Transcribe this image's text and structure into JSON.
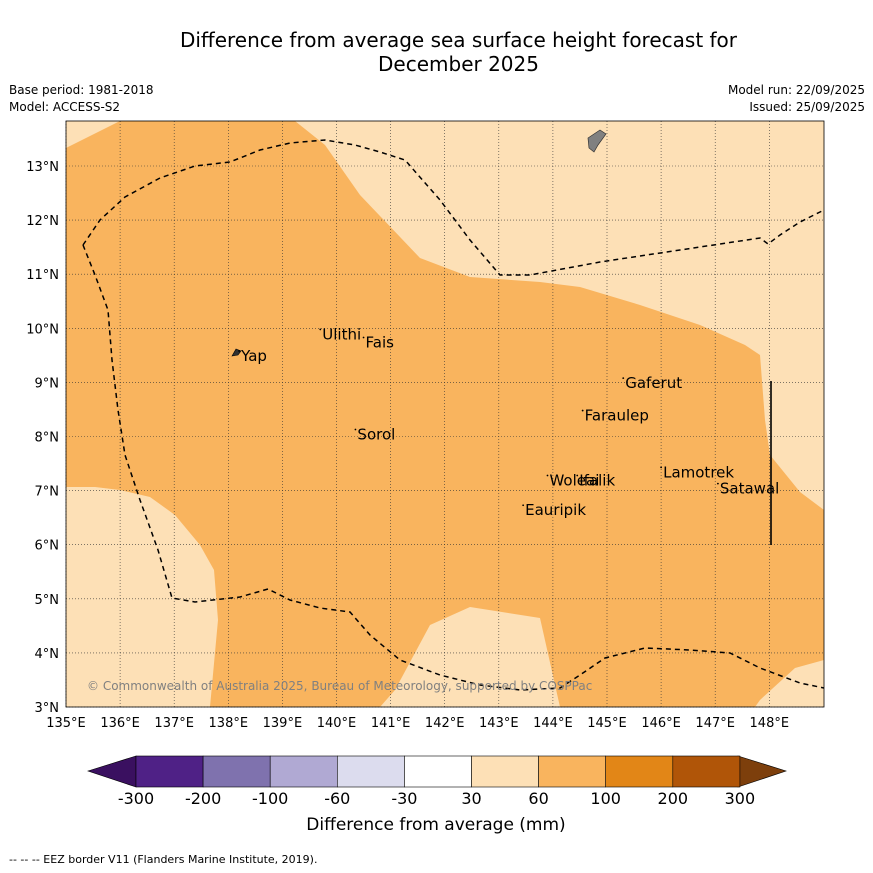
{
  "title_line1": "Difference from average sea surface height forecast for",
  "title_line2": "December 2025",
  "meta": {
    "base_period": "Base period: 1981-2018",
    "model": "Model: ACCESS-S2",
    "model_run": "Model run: 22/09/2025",
    "issued": "Issued: 25/09/2025"
  },
  "axes": {
    "x_ticks": [
      "135°E",
      "136°E",
      "137°E",
      "138°E",
      "139°E",
      "140°E",
      "141°E",
      "142°E",
      "143°E",
      "144°E",
      "145°E",
      "146°E",
      "147°E",
      "148°E"
    ],
    "y_ticks": [
      "3°N",
      "4°N",
      "5°N",
      "6°N",
      "7°N",
      "8°N",
      "9°N",
      "10°N",
      "11°N",
      "12°N",
      "13°N"
    ]
  },
  "places": [
    {
      "name": "Yap",
      "lon": 138.2,
      "lat": 9.45
    },
    {
      "name": "Ulithi",
      "lon": 139.7,
      "lat": 9.85
    },
    {
      "name": "Fais",
      "lon": 140.5,
      "lat": 9.7
    },
    {
      "name": "Sorol",
      "lon": 140.35,
      "lat": 8.0
    },
    {
      "name": "Gaferut",
      "lon": 145.3,
      "lat": 8.95
    },
    {
      "name": "Faraulep",
      "lon": 144.55,
      "lat": 8.35
    },
    {
      "name": "Woleai",
      "lon": 143.9,
      "lat": 7.15
    },
    {
      "name": "Ifalik",
      "lon": 144.45,
      "lat": 7.15
    },
    {
      "name": "Lamotrek",
      "lon": 146.0,
      "lat": 7.3
    },
    {
      "name": "Satawal",
      "lon": 147.05,
      "lat": 7.0
    },
    {
      "name": "Eauripik",
      "lon": 143.45,
      "lat": 6.6
    }
  ],
  "copyright": "© Commonwealth of Australia 2025, Bureau of Meteorology, supported by COSPPac",
  "legend": {
    "ticks": [
      "-300",
      "-200",
      "-100",
      "-60",
      "-30",
      "30",
      "60",
      "100",
      "200",
      "300"
    ],
    "label": "Difference from average (mm)",
    "colors": [
      "#3a1060",
      "#4f2186",
      "#7f72ae",
      "#b0a9d3",
      "#dcdcee",
      "#ffffff",
      "#fde0b6",
      "#f9b45e",
      "#e28617",
      "#b05508",
      "#7d3f0c"
    ]
  },
  "footer": "--  --  -- EEZ border V11 (Flanders Marine Institute, 2019)."
}
